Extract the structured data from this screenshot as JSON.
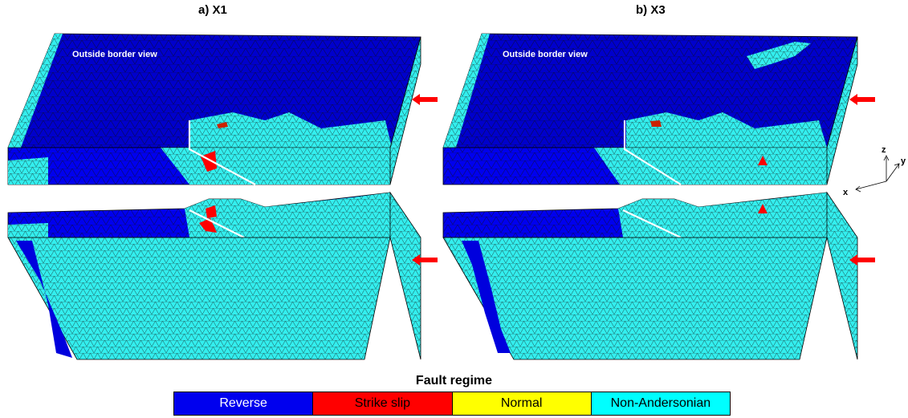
{
  "panels": [
    {
      "title": "a) X1",
      "view_label": "Outside border view"
    },
    {
      "title": "b) X3",
      "view_label": "Outside border view"
    }
  ],
  "axes": {
    "z": "z",
    "y": "y",
    "x": "x"
  },
  "legend": {
    "title": "Fault regime",
    "items": [
      {
        "label": "Reverse",
        "color": "#0000ee"
      },
      {
        "label": "Strike slip",
        "color": "#ff0000"
      },
      {
        "label": "Normal",
        "color": "#ffff00"
      },
      {
        "label": "Non-Andersonian",
        "color": "#00ffff"
      }
    ]
  },
  "mesh_colors": {
    "reverse": "#0000dd",
    "non_andersonian": "#33eeee",
    "edge": "#1a3a3a"
  }
}
